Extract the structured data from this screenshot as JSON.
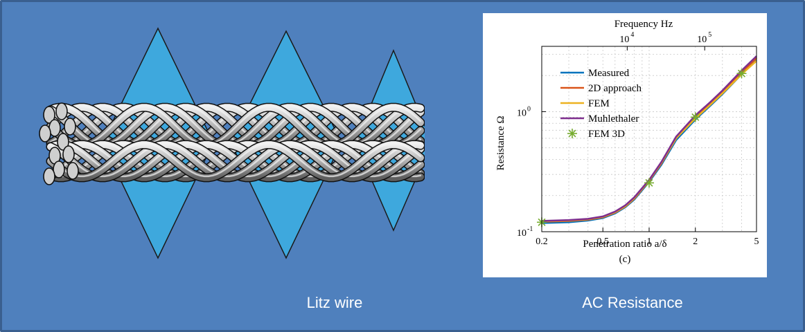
{
  "colors": {
    "background": "#4f80bd",
    "border": "#3a5f8f",
    "diamond": "#3ea8dd",
    "strand_light": "#c9c9c9",
    "strand_dark": "#6f6f6f"
  },
  "captions": {
    "left": "Litz wire",
    "right": "AC Resistance"
  },
  "chart_data": {
    "type": "line",
    "top_axis_label": "Frequency Hz",
    "top_ticks": [
      {
        "base": "10",
        "exp": "4",
        "x": 0.72
      },
      {
        "base": "10",
        "exp": "5",
        "x": 2.3
      }
    ],
    "xlabel": "Penetration ratio a/δ",
    "ylabel": "Resistance Ω",
    "subcaption": "(c)",
    "x_scale": "log",
    "y_scale": "log",
    "xlim": [
      0.2,
      5
    ],
    "ylim": [
      0.1,
      3.5
    ],
    "x_ticks": [
      {
        "value": 0.2,
        "label": "0.2"
      },
      {
        "value": 0.5,
        "label": "0.5"
      },
      {
        "value": 1,
        "label": "1"
      },
      {
        "value": 2,
        "label": "2"
      },
      {
        "value": 5,
        "label": "5"
      }
    ],
    "y_ticks": [
      {
        "value": 0.1,
        "base": "10",
        "exp": "-1"
      },
      {
        "value": 1,
        "base": "10",
        "exp": "0"
      }
    ],
    "grid": true,
    "legend_position": "top-left",
    "series": [
      {
        "name": "Measured",
        "color": "#0072bd",
        "style": "line",
        "x": [
          0.2,
          0.3,
          0.4,
          0.5,
          0.6,
          0.7,
          0.8,
          1.0,
          1.2,
          1.5,
          2.0,
          2.5,
          3.0,
          4.0,
          5.0
        ],
        "y": [
          0.118,
          0.12,
          0.124,
          0.13,
          0.142,
          0.16,
          0.185,
          0.26,
          0.36,
          0.58,
          0.86,
          1.12,
          1.4,
          2.05,
          2.7
        ]
      },
      {
        "name": "2D approach",
        "color": "#d95319",
        "style": "line",
        "x": [
          0.2,
          0.3,
          0.4,
          0.5,
          0.6,
          0.7,
          0.8,
          1.0,
          1.2,
          1.5,
          2.0,
          2.5,
          3.0,
          4.0,
          5.0
        ],
        "y": [
          0.121,
          0.123,
          0.126,
          0.132,
          0.144,
          0.162,
          0.188,
          0.265,
          0.37,
          0.6,
          0.9,
          1.17,
          1.46,
          2.12,
          2.8
        ]
      },
      {
        "name": "FEM",
        "color": "#edb120",
        "style": "line",
        "x": [
          0.2,
          0.3,
          0.4,
          0.5,
          0.6,
          0.7,
          0.8,
          1.0,
          1.2,
          1.5,
          2.0,
          2.5,
          3.0,
          4.0,
          5.0
        ],
        "y": [
          0.122,
          0.124,
          0.127,
          0.133,
          0.145,
          0.163,
          0.19,
          0.268,
          0.375,
          0.6,
          0.88,
          1.14,
          1.42,
          2.05,
          2.65
        ]
      },
      {
        "name": "Muhlethaler",
        "color": "#7e2f8e",
        "style": "line",
        "x": [
          0.2,
          0.3,
          0.4,
          0.5,
          0.6,
          0.7,
          0.8,
          1.0,
          1.2,
          1.5,
          2.0,
          2.5,
          3.0,
          4.0,
          5.0
        ],
        "y": [
          0.123,
          0.125,
          0.128,
          0.134,
          0.147,
          0.166,
          0.193,
          0.27,
          0.38,
          0.62,
          0.93,
          1.2,
          1.5,
          2.2,
          2.9
        ]
      },
      {
        "name": "FEM 3D",
        "color": "#77ac30",
        "style": "marker",
        "x": [
          0.2,
          1.0,
          2.0,
          4.0
        ],
        "y": [
          0.12,
          0.255,
          0.9,
          2.08
        ]
      }
    ]
  }
}
